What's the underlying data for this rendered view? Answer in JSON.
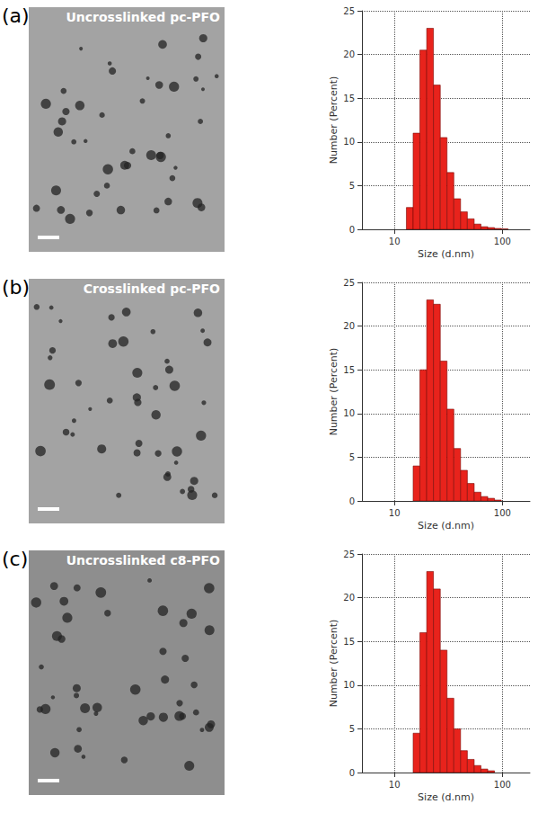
{
  "chart_data": [
    {
      "type": "histogram",
      "panel_label": "(a)",
      "title": "Uncrosslinked pc-PFO",
      "xlabel": "Size (d.nm)",
      "ylabel": "Number (Percent)",
      "bins": [
        12.9,
        14.9,
        17.2,
        19.9,
        23.0,
        26.6,
        30.7,
        35.5,
        41.0,
        47.4,
        54.8,
        63.3,
        73.2,
        84.6,
        97.7,
        113
      ],
      "values": [
        2.5,
        11,
        20.5,
        23,
        16.5,
        10.5,
        6.5,
        3.5,
        2,
        1.2,
        0.6,
        0.3,
        0.2,
        0.1,
        0.05
      ],
      "color": "#e8231c",
      "log": "x",
      "grid": true,
      "xlim": [
        5,
        180
      ],
      "xticks": [
        10,
        100
      ],
      "ylim": [
        0,
        25
      ],
      "yticks": [
        0,
        5,
        10,
        15,
        20,
        25
      ]
    },
    {
      "type": "histogram",
      "panel_label": "(b)",
      "title": "Crosslinked pc-PFO",
      "xlabel": "Size (d.nm)",
      "ylabel": "Number (Percent)",
      "bins": [
        14.9,
        17.2,
        19.9,
        23.0,
        26.6,
        30.7,
        35.5,
        41.0,
        47.4,
        54.8,
        63.3,
        73.2,
        84.6,
        97.7
      ],
      "values": [
        4,
        15,
        23,
        22.5,
        16,
        10.5,
        6,
        3.5,
        2,
        1,
        0.5,
        0.3,
        0.1
      ],
      "color": "#e8231c",
      "log": "x",
      "grid": true,
      "xlim": [
        5,
        180
      ],
      "xticks": [
        10,
        100
      ],
      "ylim": [
        0,
        25
      ],
      "yticks": [
        0,
        5,
        10,
        15,
        20,
        25
      ]
    },
    {
      "type": "histogram",
      "panel_label": "(c)",
      "title": "Uncrosslinked c8-PFO",
      "xlabel": "Size (d.nm)",
      "ylabel": "Number (Percent)",
      "bins": [
        14.9,
        17.2,
        19.9,
        23.0,
        26.6,
        30.7,
        35.5,
        41.0,
        47.4,
        54.8,
        63.3,
        73.2,
        84.6
      ],
      "values": [
        4.5,
        16,
        23,
        21,
        14,
        8.5,
        5,
        2.5,
        1.5,
        0.8,
        0.4,
        0.2
      ],
      "color": "#e8231c",
      "log": "x",
      "grid": true,
      "xlim": [
        5,
        180
      ],
      "xticks": [
        10,
        100
      ],
      "ylim": [
        0,
        25
      ],
      "yticks": [
        0,
        5,
        10,
        15,
        20,
        25
      ]
    }
  ]
}
